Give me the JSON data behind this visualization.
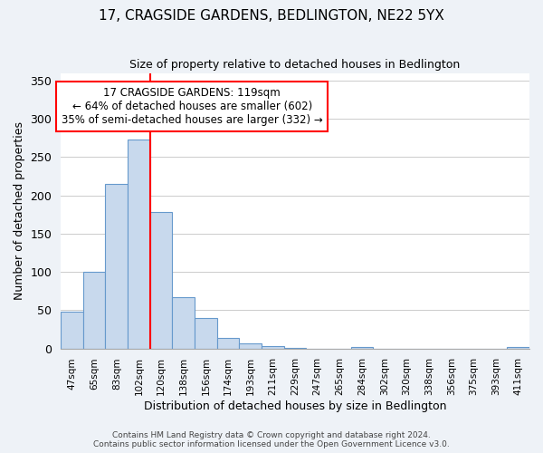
{
  "title": "17, CRAGSIDE GARDENS, BEDLINGTON, NE22 5YX",
  "subtitle": "Size of property relative to detached houses in Bedlington",
  "xlabel": "Distribution of detached houses by size in Bedlington",
  "ylabel": "Number of detached properties",
  "bin_labels": [
    "47sqm",
    "65sqm",
    "83sqm",
    "102sqm",
    "120sqm",
    "138sqm",
    "156sqm",
    "174sqm",
    "193sqm",
    "211sqm",
    "229sqm",
    "247sqm",
    "265sqm",
    "284sqm",
    "302sqm",
    "320sqm",
    "338sqm",
    "356sqm",
    "375sqm",
    "393sqm",
    "411sqm"
  ],
  "bar_heights": [
    48,
    100,
    215,
    273,
    178,
    67,
    40,
    14,
    7,
    3,
    1,
    0,
    0,
    2,
    0,
    0,
    0,
    0,
    0,
    0,
    2
  ],
  "bar_color": "#c8d9ed",
  "bar_edge_color": "#6699cc",
  "vline_color": "red",
  "vline_pos": 3.5,
  "annotation_title": "17 CRAGSIDE GARDENS: 119sqm",
  "annotation_line1": "← 64% of detached houses are smaller (602)",
  "annotation_line2": "35% of semi-detached houses are larger (332) →",
  "annotation_box_color": "white",
  "annotation_box_edge_color": "red",
  "ylim": [
    0,
    360
  ],
  "yticks": [
    0,
    50,
    100,
    150,
    200,
    250,
    300,
    350
  ],
  "footer1": "Contains HM Land Registry data © Crown copyright and database right 2024.",
  "footer2": "Contains public sector information licensed under the Open Government Licence v3.0.",
  "background_color": "#eef2f7",
  "plot_bg_color": "#ffffff"
}
